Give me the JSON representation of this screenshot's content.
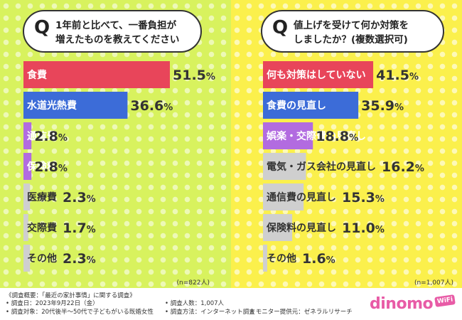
{
  "colors": {
    "left_bg": "#d8f25e",
    "right_bg": "#fbf04c",
    "red": "#e8455a",
    "blue": "#3c6cd8",
    "purple": "#b26be0",
    "gray": "#cfcfcf"
  },
  "left": {
    "q_mark": "Q",
    "question_line1": "1年前と比べて、一番負担が",
    "question_line2": "増えたものを教えてください",
    "n_note": "(n=822人)"
  },
  "right": {
    "q_mark": "Q",
    "question_line1": "値上げを受けて何か対策を",
    "question_line2": "しましたか？(複数選択可)",
    "n_note": "(n=1,007人)"
  },
  "chart_data": [
    {
      "type": "bar",
      "orientation": "horizontal",
      "categories": [
        "食費",
        "水道光熱費",
        "通信費",
        "保険料",
        "医療費",
        "交際費",
        "その他"
      ],
      "values": [
        51.5,
        36.6,
        2.8,
        2.8,
        2.3,
        1.7,
        2.3
      ],
      "unit": "%",
      "bar_colors": [
        "#e8455a",
        "#3c6cd8",
        "#b26be0",
        "#b26be0",
        "#cfcfcf",
        "#cfcfcf",
        "#cfcfcf"
      ],
      "label_inside": [
        true,
        true,
        true,
        true,
        false,
        false,
        false
      ],
      "xlim": [
        0,
        60
      ]
    },
    {
      "type": "bar",
      "orientation": "horizontal",
      "categories": [
        "何も対策はしていない",
        "食費の見直し",
        "娯楽・交際費の見直し",
        "電気・ガス会社の見直し",
        "通信費の見直し",
        "保険料の見直し",
        "その他"
      ],
      "values": [
        41.5,
        35.9,
        18.8,
        16.2,
        15.3,
        11.0,
        1.6
      ],
      "unit": "%",
      "bar_colors": [
        "#e8455a",
        "#3c6cd8",
        "#b26be0",
        "#cfcfcf",
        "#cfcfcf",
        "#cfcfcf",
        "#cfcfcf"
      ],
      "label_inside": [
        true,
        true,
        true,
        false,
        false,
        false,
        false
      ],
      "xlim": [
        0,
        60
      ]
    }
  ],
  "footer": {
    "line1": "《調査概要：「最近の家計事情」に関する調査》",
    "line2": "• 調査日：2023年9月22日（金）",
    "line3": "• 調査対象：20代後半〜50代で子どもがいる既婚女性",
    "line4": "• 調査人数：1,007人",
    "line5": "• 調査方法：インターネット調査",
    "line6": "• モニター提供元：ゼネラルリサーチ"
  },
  "logo": {
    "text": "dinomo",
    "badge": "WiFi"
  }
}
